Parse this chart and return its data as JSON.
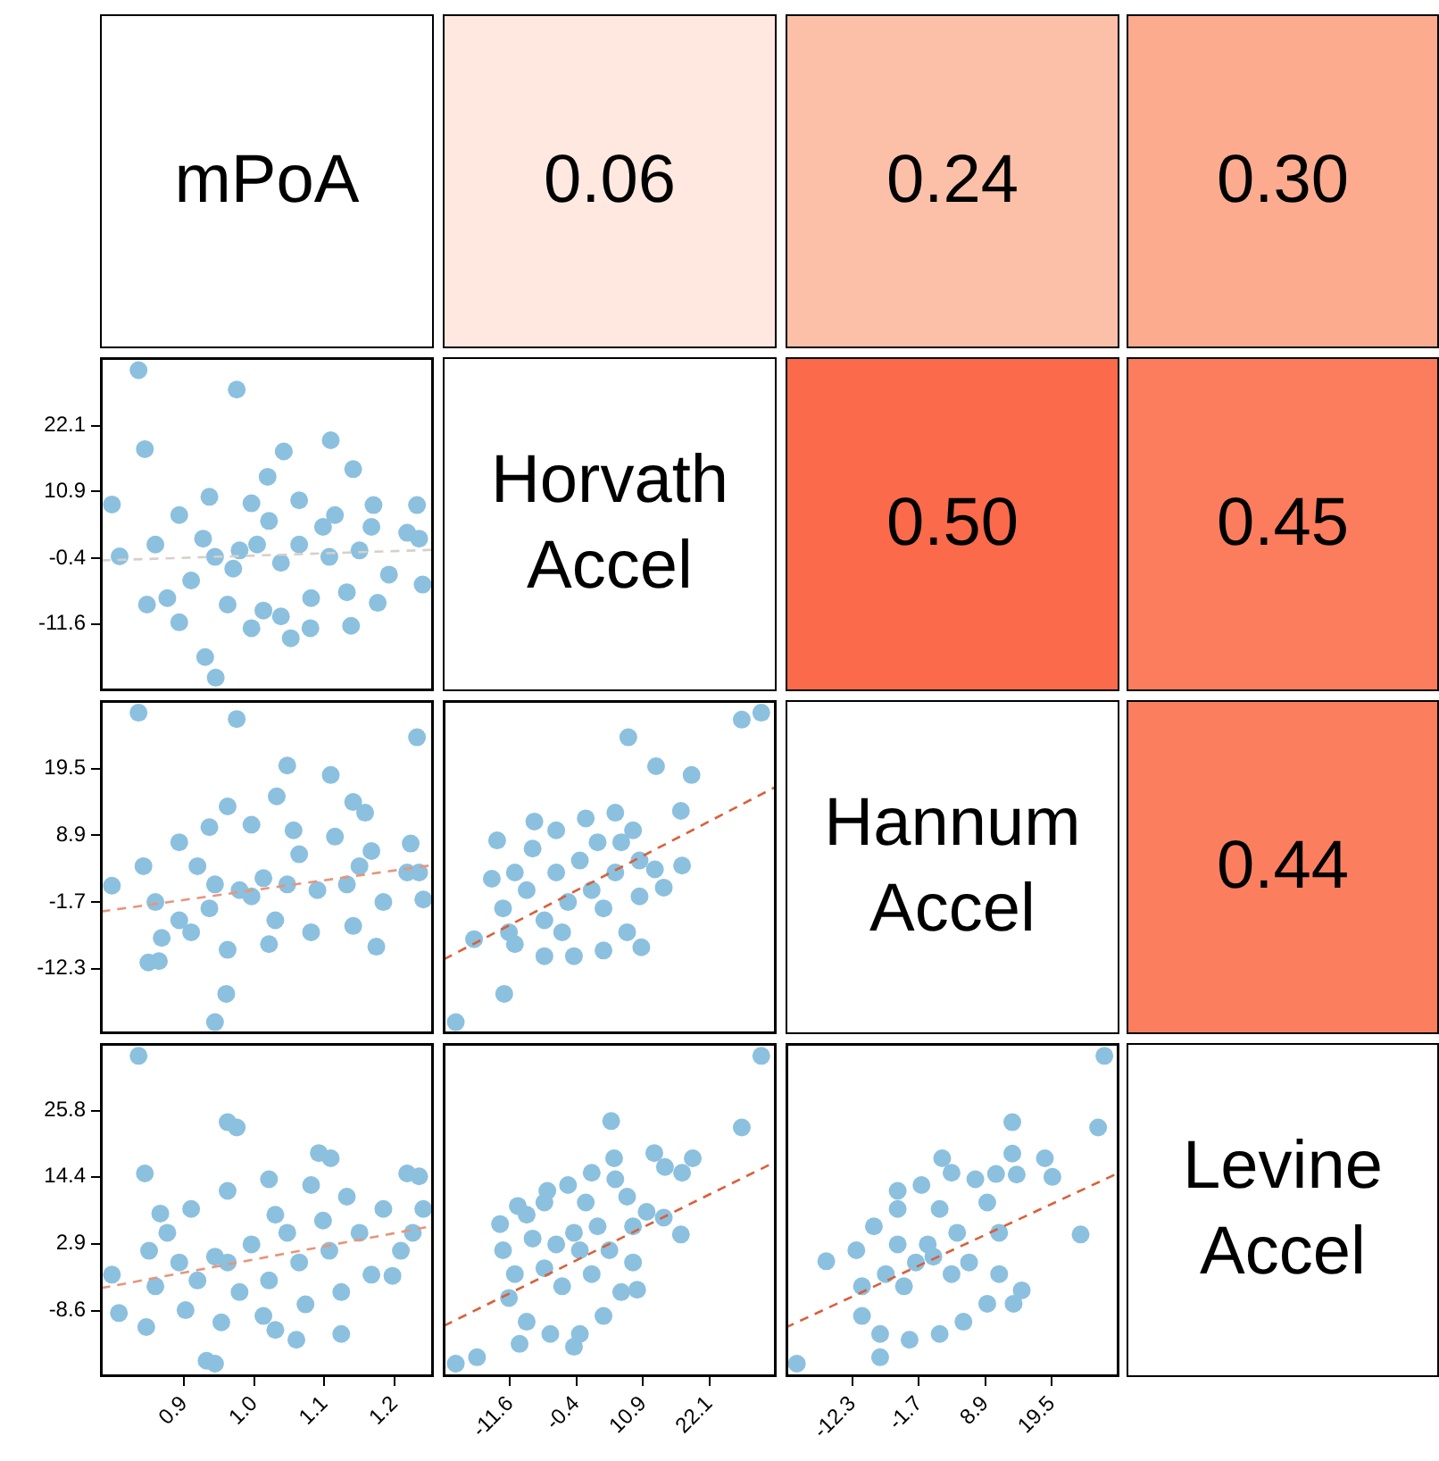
{
  "chart_data": [
    {
      "type": "other",
      "title": "mPoA"
    },
    {
      "type": "other",
      "annotations": [
        "0.06"
      ],
      "color": "#fee8df"
    },
    {
      "type": "other",
      "annotations": [
        "0.24"
      ],
      "color": "#fcc0a8"
    },
    {
      "type": "other",
      "annotations": [
        "0.30"
      ],
      "color": "#fcab8f"
    },
    {
      "type": "scatter",
      "tick_labels": "y",
      "xlim": [
        0.78,
        1.256
      ],
      "ylim": [
        -23,
        33.7
      ],
      "yticks": [
        -11.6,
        -0.4,
        10.9,
        22.1
      ],
      "series": [
        {
          "color": "#8cc0df",
          "x": [
            0.835,
            0.975,
            0.844,
            1.109,
            1.042,
            1.141,
            1.019,
            0.797,
            1.232,
            1.17,
            1.24,
            0.847,
            0.93,
            0.945,
            1.052,
            1.08,
            1.138,
            1.176,
            0.808,
            0.893,
            0.936,
            0.996,
            1.064,
            1.115,
            1.167,
            1.218,
            0.859,
            0.91,
            0.962,
            1.013,
            1.081,
            1.132,
            1.192,
            1.235,
            0.944,
            0.979,
            1.004,
            1.038,
            0.97,
            0.927,
            1.064,
            1.107,
            1.15,
            0.876,
            0.893,
            0.996,
            1.038,
            1.098,
            1.021
          ],
          "values": [
            31.5,
            28.2,
            18.1,
            19.6,
            17.7,
            14.7,
            13.4,
            8.7,
            8.6,
            8.6,
            -4.9,
            -8.3,
            -17.2,
            -20.7,
            -14.0,
            -12.3,
            -11.9,
            -8.0,
            -0.1,
            6.9,
            10.0,
            8.9,
            9.4,
            6.9,
            4.9,
            3.9,
            1.9,
            -4.2,
            -8.3,
            -9.3,
            -7.2,
            -6.2,
            -3.2,
            2.9,
            -0.2,
            0.9,
            1.9,
            -1.2,
            -2.2,
            2.9,
            1.9,
            -0.2,
            0.9,
            -7.2,
            -11.3,
            -12.3,
            -10.3,
            4.9,
            5.9
          ]
        },
        {
          "type": "line",
          "line_style": "dashed",
          "color": "#d8d0c8",
          "x": [
            0.782,
            1.256
          ],
          "values": [
            -0.8,
            1.0
          ]
        }
      ]
    },
    {
      "type": "other",
      "title": "Horvath Accel"
    },
    {
      "type": "other",
      "annotations": [
        "0.50"
      ],
      "color": "#fb6a4a"
    },
    {
      "type": "other",
      "annotations": [
        "0.45"
      ],
      "color": "#fb7d5d"
    },
    {
      "type": "scatter",
      "tick_labels": "y",
      "xlim": [
        0.78,
        1.256
      ],
      "ylim": [
        -22.7,
        30.4
      ],
      "yticks": [
        -12.3,
        -1.7,
        8.9,
        19.5
      ],
      "series": [
        {
          "color": "#8cc0df",
          "x": [
            0.835,
            0.975,
            1.232,
            1.047,
            1.109,
            0.962,
            1.032,
            1.141,
            1.158,
            1.223,
            1.241,
            0.797,
            0.849,
            0.96,
            0.944,
            1.174,
            0.864,
            0.893,
            0.936,
            0.996,
            1.056,
            1.115,
            1.167,
            1.218,
            0.842,
            0.859,
            0.91,
            0.962,
            1.021,
            1.081,
            1.141,
            1.184,
            1.235,
            0.944,
            0.979,
            1.013,
            1.047,
            0.996,
            0.936,
            1.09,
            1.132,
            0.893,
            0.868,
            1.03,
            1.15,
            1.064,
            0.919
          ],
          "values": [
            28.4,
            27.4,
            24.5,
            20.0,
            18.5,
            13.5,
            15.1,
            14.2,
            12.5,
            7.6,
            -1.3,
            0.9,
            -11.3,
            -16.3,
            -20.8,
            -8.8,
            -11.1,
            7.8,
            10.2,
            10.6,
            9.7,
            8.7,
            6.4,
            3.0,
            4.0,
            -1.7,
            -6.5,
            -9.3,
            -8.4,
            -6.5,
            -5.5,
            -1.7,
            3.0,
            1.1,
            0.2,
            2.1,
            1.1,
            -0.8,
            -2.7,
            0.2,
            1.1,
            -4.6,
            -7.4,
            -4.6,
            4.0,
            5.9,
            4.0
          ]
        },
        {
          "type": "line",
          "line_style": "dashed",
          "color": "#e8957a",
          "x": [
            0.782,
            1.256
          ],
          "values": [
            -3.2,
            4.2
          ]
        }
      ]
    },
    {
      "type": "scatter",
      "tick_labels": false,
      "xlim": [
        -23,
        33.5
      ],
      "ylim": [
        -22.7,
        30.4
      ],
      "series": [
        {
          "color": "#8cc0df",
          "x": [
            -20.8,
            -12.6,
            27.6,
            30.9,
            8.4,
            13.1,
            19.1,
            17.3,
            17.5,
            14.4,
            12.9,
            -14.7,
            -13.8,
            -17.7,
            10.6,
            -7.5,
            -10.8,
            -7.8,
            -3.8,
            1.2,
            6.2,
            9.2,
            10.3,
            10.3,
            8.2,
            4.2,
            -0.8,
            -5.8,
            -10.8,
            -12.8,
            -3.8,
            0.2,
            2.2,
            -1.8,
            4.2,
            -5.8,
            6.2,
            -8.8,
            3.2,
            -2.8,
            7.2,
            -11.8
          ],
          "values": [
            -20.8,
            -16.3,
            27.3,
            28.4,
            24.5,
            19.9,
            18.5,
            12.8,
            4.1,
            0.6,
            3.5,
            2.0,
            8.1,
            -7.6,
            -8.9,
            11.1,
            3.0,
            6.8,
            9.7,
            11.6,
            12.5,
            9.7,
            4.9,
            -0.8,
            -6.5,
            -9.4,
            -10.3,
            -10.3,
            -8.4,
            -2.7,
            3.0,
            4.9,
            0.2,
            -1.7,
            -2.7,
            -4.6,
            3.0,
            0.2,
            7.8,
            -6.5,
            7.8,
            -6.5
          ]
        },
        {
          "type": "line",
          "line_style": "dashed",
          "color": "#d9603b",
          "x": [
            -22.8,
            33.1
          ],
          "values": [
            -10.8,
            16.5
          ]
        }
      ]
    },
    {
      "type": "other",
      "title": "Hannum Accel"
    },
    {
      "type": "other",
      "annotations": [
        "0.44"
      ],
      "color": "#fb7f5f"
    },
    {
      "type": "scatter",
      "xlim": [
        0.78,
        1.256
      ],
      "ylim": [
        -20,
        37.4
      ],
      "xticks": [
        0.9,
        {
          "value": 1,
          "label": "1.0"
        },
        1.1,
        1.2
      ],
      "yticks": [
        -8.6,
        2.9,
        14.4,
        25.8
      ],
      "series": [
        {
          "color": "#8cc0df",
          "x": [
            0.835,
            0.962,
            0.975,
            0.844,
            0.866,
            0.797,
            1.092,
            1.109,
            1.218,
            1.235,
            1.241,
            0.932,
            0.944,
            1.06,
            1.124,
            1.03,
            0.846,
            1.197,
            0.807,
            0.876,
            0.91,
            0.962,
            1.021,
            1.081,
            1.132,
            1.184,
            1.226,
            0.85,
            0.859,
            0.902,
            0.953,
            1.013,
            1.073,
            1.124,
            1.167,
            1.209,
            0.944,
            0.962,
            0.996,
            1.021,
            1.064,
            1.107,
            1.15,
            0.919,
            0.979,
            1.047,
            1.03,
            1.098,
            0.893
          ],
          "values": [
            35.2,
            23.8,
            22.9,
            15.0,
            8.1,
            -2.4,
            18.5,
            17.6,
            15.0,
            14.5,
            8.9,
            -17.2,
            -17.7,
            -13.6,
            -12.6,
            -11.9,
            -11.4,
            -2.6,
            -9.0,
            4.8,
            8.9,
            12.0,
            14.0,
            13.0,
            11.0,
            8.9,
            4.8,
            1.7,
            -4.4,
            -8.5,
            -10.6,
            -9.5,
            -7.5,
            -5.4,
            -2.4,
            1.7,
            0.7,
            -0.3,
            2.8,
            -3.4,
            -0.3,
            1.7,
            4.8,
            -3.4,
            -5.4,
            4.8,
            7.9,
            6.9,
            -0.3
          ]
        },
        {
          "type": "line",
          "line_style": "dashed",
          "color": "#e8957a",
          "x": [
            0.782,
            1.256
          ],
          "values": [
            -4.7,
            6.0
          ]
        }
      ]
    },
    {
      "type": "scatter",
      "tick_labels": "x",
      "xlim": [
        -23,
        33.5
      ],
      "ylim": [
        -20,
        37.4
      ],
      "xticks": [
        -11.6,
        -0.4,
        10.9,
        22.1
      ],
      "series": [
        {
          "color": "#8cc0df",
          "x": [
            -20.8,
            -17.2,
            30.9,
            27.6,
            5.5,
            6.0,
            12.8,
            14.6,
            19.3,
            17.5,
            17.3,
            14.4,
            11.5,
            -13.3,
            -10.3,
            -10.0,
            -0.8,
            9.9,
            -5.3,
            -12.8,
            -10.8,
            -8.8,
            -5.8,
            -1.8,
            2.2,
            6.2,
            8.2,
            9.2,
            9.2,
            7.2,
            4.2,
            0.2,
            -4.8,
            -8.8,
            -11.8,
            -3.8,
            0.2,
            -0.8,
            2.2,
            -2.8,
            3.2,
            -5.8,
            5.2,
            -7.8,
            1.2
          ],
          "values": [
            -17.7,
            -16.6,
            35.2,
            22.9,
            24.0,
            17.6,
            18.5,
            16.1,
            17.6,
            15.1,
            4.5,
            7.4,
            8.4,
            6.3,
            9.4,
            -14.3,
            -14.8,
            -5.0,
            12.0,
            1.8,
            -2.3,
            7.9,
            10.0,
            13.0,
            15.1,
            14.0,
            11.0,
            5.9,
            -0.3,
            -5.4,
            -9.5,
            -12.6,
            -12.6,
            -10.5,
            -6.4,
            2.8,
            1.8,
            4.8,
            -2.3,
            -4.4,
            5.9,
            -1.3,
            1.8,
            3.8,
            10.0
          ]
        },
        {
          "type": "line",
          "line_style": "dashed",
          "color": "#d9603b",
          "x": [
            -22.8,
            33.1
          ],
          "values": [
            -11.2,
            16.9
          ]
        }
      ]
    },
    {
      "type": "scatter",
      "tick_labels": "x",
      "xlim": [
        -23,
        30.3
      ],
      "ylim": [
        -20,
        37.4
      ],
      "xticks": [
        -12.3,
        -1.7,
        8.9,
        19.5
      ],
      "series": [
        {
          "color": "#8cc0df",
          "x": [
            -21.2,
            -16.5,
            27.9,
            26.9,
            24.1,
            13.2,
            13.2,
            13.9,
            18.4,
            19.6,
            14.7,
            13.4,
            10.6,
            -5.1,
            2.0,
            -7.9,
            -11.7,
            -10.8,
            -8.9,
            -5.1,
            -1.3,
            3.5,
            7.3,
            9.2,
            11.1,
            11.1,
            9.2,
            5.4,
            1.6,
            -3.2,
            -7.9,
            -10.8,
            -2.2,
            0.6,
            -0.3,
            3.5,
            -4.1,
            4.4,
            -5.1,
            6.3,
            -7.0,
            1.6
          ],
          "values": [
            -17.7,
            -0.1,
            35.2,
            22.9,
            4.5,
            23.8,
            18.4,
            14.8,
            17.6,
            14.4,
            -5.1,
            -7.4,
            14.9,
            12.0,
            17.6,
            -16.6,
            1.8,
            -4.4,
            5.9,
            8.9,
            13.0,
            15.1,
            14.0,
            10.0,
            4.8,
            -2.3,
            -7.4,
            -10.5,
            -12.6,
            -13.6,
            -12.6,
            -9.5,
            -0.3,
            0.7,
            2.8,
            -2.3,
            -4.4,
            4.8,
            2.8,
            -0.3,
            -2.3,
            8.9
          ]
        },
        {
          "type": "line",
          "line_style": "dashed",
          "color": "#d9603b",
          "x": [
            -23.0,
            29.8
          ],
          "values": [
            -11.5,
            14.9
          ]
        }
      ]
    },
    {
      "type": "other",
      "title": "Levine Accel"
    }
  ]
}
